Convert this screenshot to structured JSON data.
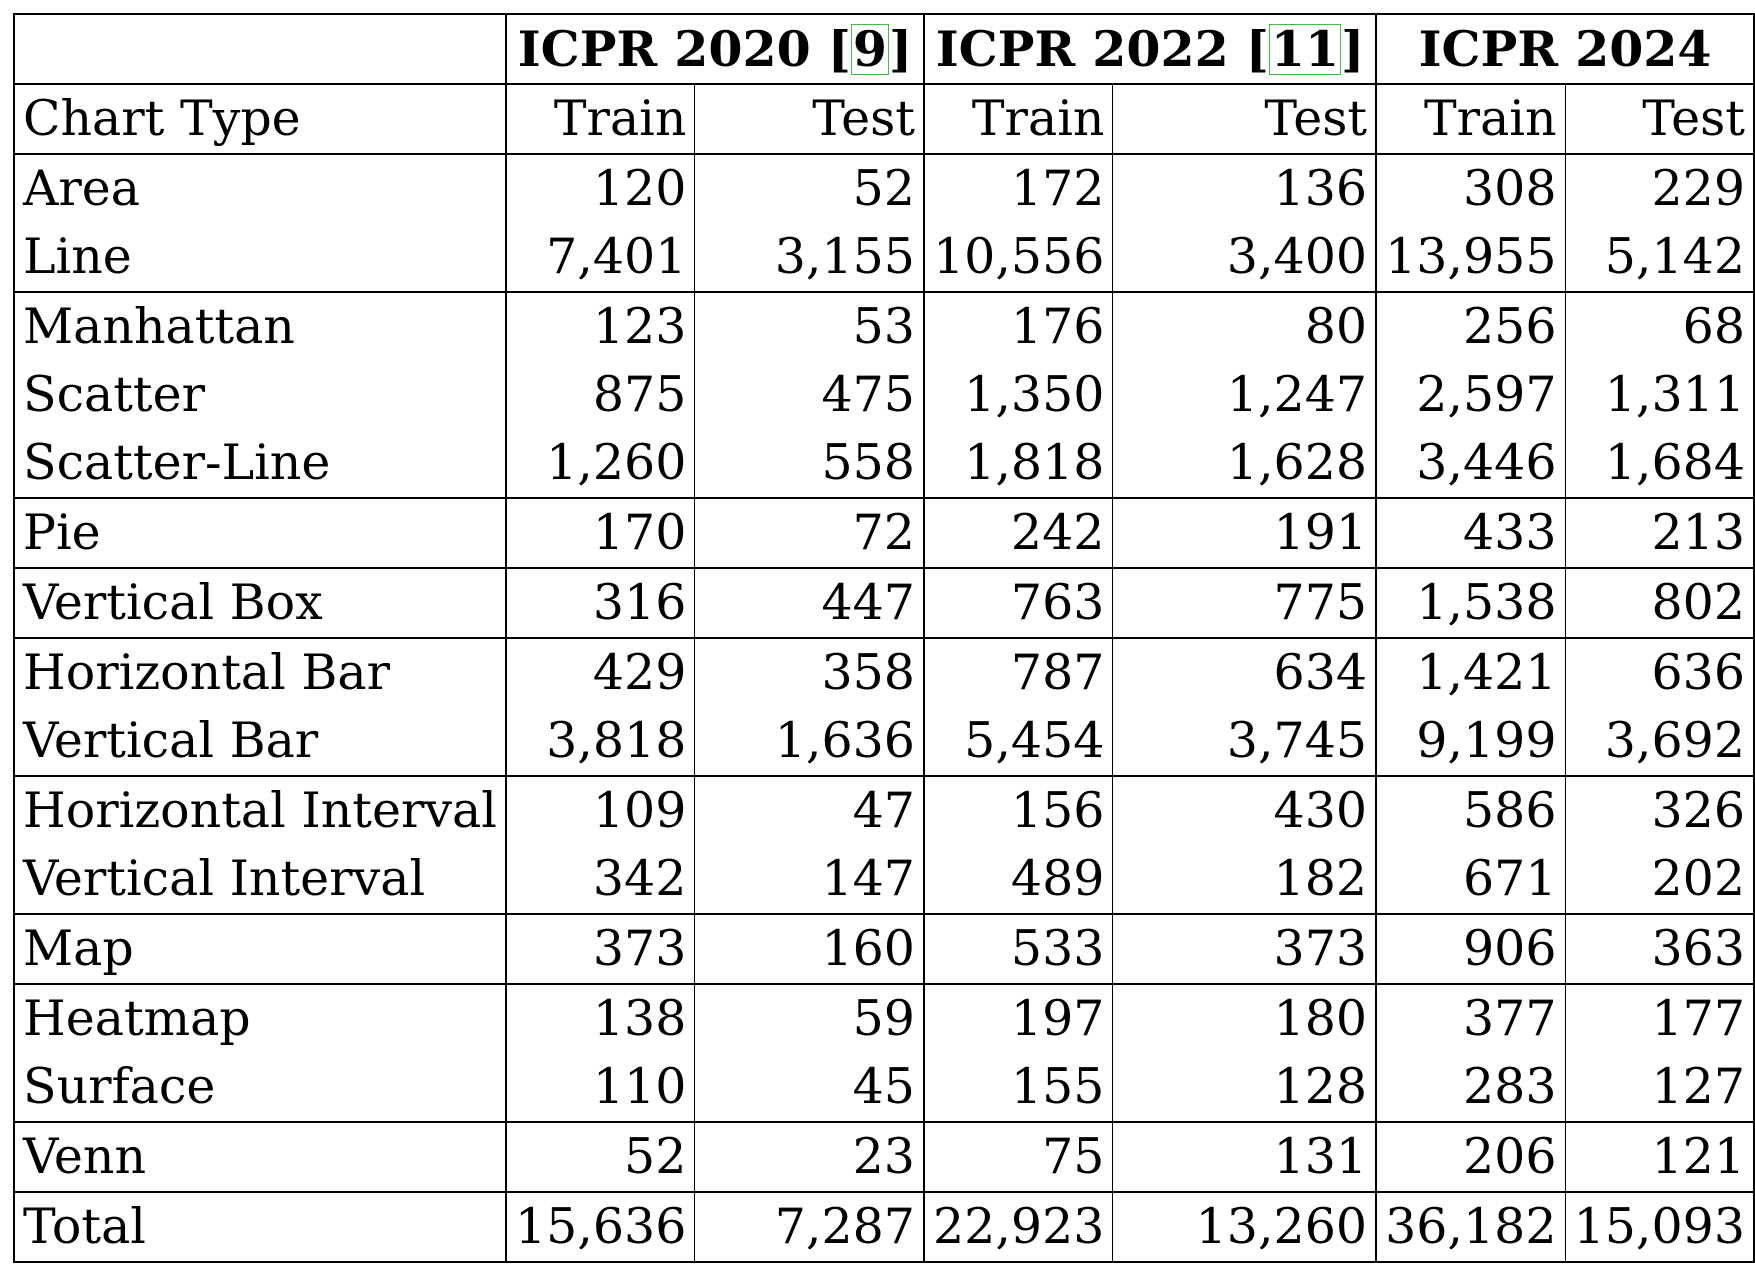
{
  "header": {
    "groups": [
      {
        "label": "ICPR 2020 [",
        "ref": "9",
        "close": "]"
      },
      {
        "label": "ICPR 2022 [",
        "ref": "11",
        "close": "]"
      },
      {
        "label": "ICPR 2024",
        "ref": "",
        "close": ""
      }
    ],
    "first_col": "Chart Type",
    "sub": [
      "Train",
      "Test",
      "Train",
      "Test",
      "Train",
      "Test"
    ]
  },
  "rows": [
    [
      "Area",
      "120",
      "52",
      "172",
      "136",
      "308",
      "229"
    ],
    [
      "Line",
      "7,401",
      "3,155",
      "10,556",
      "3,400",
      "13,955",
      "5,142"
    ],
    [
      "Manhattan",
      "123",
      "53",
      "176",
      "80",
      "256",
      "68"
    ],
    [
      "Scatter",
      "875",
      "475",
      "1,350",
      "1,247",
      "2,597",
      "1,311"
    ],
    [
      "Scatter-Line",
      "1,260",
      "558",
      "1,818",
      "1,628",
      "3,446",
      "1,684"
    ],
    [
      "Pie",
      "170",
      "72",
      "242",
      "191",
      "433",
      "213"
    ],
    [
      "Vertical Box",
      "316",
      "447",
      "763",
      "775",
      "1,538",
      "802"
    ],
    [
      "Horizontal Bar",
      "429",
      "358",
      "787",
      "634",
      "1,421",
      "636"
    ],
    [
      "Vertical Bar",
      "3,818",
      "1,636",
      "5,454",
      "3,745",
      "9,199",
      "3,692"
    ],
    [
      "Horizontal Interval",
      "109",
      "47",
      "156",
      "430",
      "586",
      "326"
    ],
    [
      "Vertical Interval",
      "342",
      "147",
      "489",
      "182",
      "671",
      "202"
    ],
    [
      "Map",
      "373",
      "160",
      "533",
      "373",
      "906",
      "363"
    ],
    [
      "Heatmap",
      "138",
      "59",
      "197",
      "180",
      "377",
      "177"
    ],
    [
      "Surface",
      "110",
      "45",
      "155",
      "128",
      "283",
      "127"
    ],
    [
      "Venn",
      "52",
      "23",
      "75",
      "131",
      "206",
      "121"
    ],
    [
      "Total",
      "15,636",
      "7,287",
      "22,923",
      "13,260",
      "36,182",
      "15,093"
    ]
  ],
  "group_breaks_after": [
    1,
    4,
    5,
    6,
    8,
    10,
    11,
    13,
    14
  ]
}
